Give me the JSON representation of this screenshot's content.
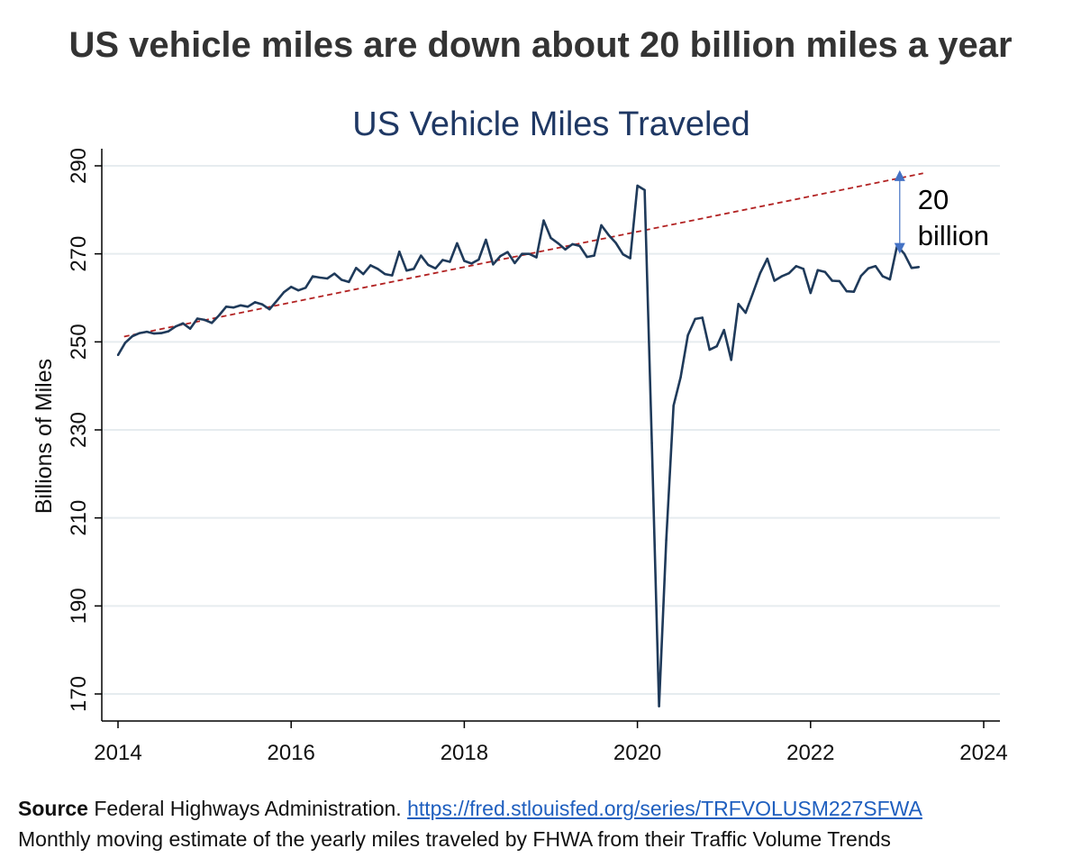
{
  "headline": "US vehicle miles are down about 20 billion miles a year",
  "footer": {
    "source_label": "Source",
    "source_text": "Federal Highways Administration.",
    "source_url": "https://fred.stlouisfed.org/series/TRFVOLUSM227SFWA",
    "note": "Monthly moving estimate of the yearly miles traveled by FHWA from their Traffic Volume Trends"
  },
  "colors": {
    "line": "#1f3a5a",
    "trend": "#b22222",
    "arrow": "#4472c4",
    "title": "#1f3864",
    "grid": "#e6ecef"
  },
  "chart_data": {
    "type": "line",
    "title": "US Vehicle Miles Traveled",
    "xlabel": "",
    "ylabel": "Billions of Miles",
    "xlim": [
      2014,
      2024
    ],
    "ylim": [
      165,
      293
    ],
    "xticks": [
      2014,
      2016,
      2018,
      2020,
      2022,
      2024
    ],
    "yticks": [
      170,
      190,
      210,
      230,
      250,
      270,
      290
    ],
    "grid": true,
    "series": [
      {
        "x": [
          2014.0,
          2014.083,
          2014.167,
          2014.25,
          2014.333,
          2014.417,
          2014.5,
          2014.583,
          2014.667,
          2014.75,
          2014.833,
          2014.917,
          2015.0,
          2015.083,
          2015.167,
          2015.25,
          2015.333,
          2015.417,
          2015.5,
          2015.583,
          2015.667,
          2015.75,
          2015.833,
          2015.917,
          2016.0,
          2016.083,
          2016.167,
          2016.25,
          2016.333,
          2016.417,
          2016.5,
          2016.583,
          2016.667,
          2016.75,
          2016.833,
          2016.917,
          2017.0,
          2017.083,
          2017.167,
          2017.25,
          2017.333,
          2017.417,
          2017.5,
          2017.583,
          2017.667,
          2017.75,
          2017.833,
          2017.917,
          2018.0,
          2018.083,
          2018.167,
          2018.25,
          2018.333,
          2018.417,
          2018.5,
          2018.583,
          2018.667,
          2018.75,
          2018.833,
          2018.917,
          2019.0,
          2019.083,
          2019.167,
          2019.25,
          2019.333,
          2019.417,
          2019.5,
          2019.583,
          2019.667,
          2019.75,
          2019.833,
          2019.917,
          2020.0,
          2020.083,
          2020.167,
          2020.25,
          2020.333,
          2020.417,
          2020.5,
          2020.583,
          2020.667,
          2020.75,
          2020.833,
          2020.917,
          2021.0,
          2021.083,
          2021.167,
          2021.25,
          2021.333,
          2021.417,
          2021.5,
          2021.583,
          2021.667,
          2021.75,
          2021.833,
          2021.917,
          2022.0,
          2022.083,
          2022.167,
          2022.25,
          2022.333,
          2022.417,
          2022.5,
          2022.583,
          2022.667,
          2022.75,
          2022.833,
          2022.917,
          2023.0,
          2023.083,
          2023.167,
          2023.25
        ],
        "values": [
          247.0,
          249.8,
          251.3,
          252.0,
          252.3,
          251.9,
          252.0,
          252.4,
          253.5,
          254.2,
          253.0,
          255.3,
          255.0,
          254.3,
          256.0,
          258.0,
          257.8,
          258.3,
          258.0,
          259.0,
          258.5,
          257.4,
          259.3,
          261.3,
          262.5,
          261.7,
          262.3,
          264.9,
          264.6,
          264.4,
          265.5,
          264.1,
          263.6,
          266.8,
          265.4,
          267.4,
          266.6,
          265.4,
          265.1,
          270.5,
          266.2,
          266.6,
          269.6,
          267.5,
          266.7,
          268.6,
          268.2,
          272.4,
          268.4,
          267.8,
          268.7,
          273.2,
          267.6,
          269.5,
          270.4,
          267.9,
          270.0,
          270.0,
          269.2,
          277.6,
          273.6,
          272.4,
          271.0,
          272.2,
          271.8,
          269.3,
          269.6,
          276.5,
          274.3,
          272.5,
          269.9,
          269.0,
          285.5,
          284.5,
          227.0,
          167.2,
          205.0,
          235.5,
          242.0,
          251.5,
          255.2,
          255.5,
          248.2,
          249.0,
          252.7,
          245.9,
          258.6,
          256.6,
          261.0,
          265.6,
          268.9,
          263.9,
          264.9,
          265.6,
          267.2,
          266.6,
          261.1,
          266.3,
          265.9,
          263.9,
          263.8,
          261.5,
          261.4,
          265.0,
          266.7,
          267.2,
          264.9,
          264.2,
          271.9,
          270.0,
          266.8,
          267.0
        ]
      }
    ],
    "trendline": {
      "x": [
        2014.07,
        2023.3
      ],
      "values": [
        251.2,
        288.3
      ]
    },
    "annotation": {
      "x": 2023.03,
      "from": 270.0,
      "to": 289.0,
      "label_lines": [
        "20",
        "billion"
      ]
    }
  }
}
